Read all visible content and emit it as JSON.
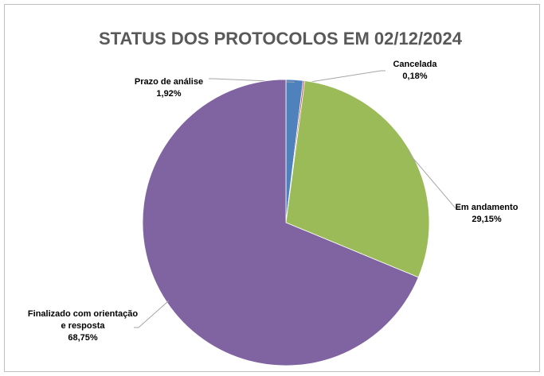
{
  "chart_data": {
    "type": "pie",
    "title": "STATUS DOS PROTOCOLOS EM 02/12/2024",
    "categories": [
      "Prazo de análise",
      "Cancelada",
      "Em andamento",
      "Finalizado com orientação e resposta"
    ],
    "values": [
      1.92,
      0.18,
      29.15,
      68.75
    ],
    "value_labels": [
      "1,92%",
      "0,18%",
      "29,15%",
      "68,75%"
    ],
    "colors": [
      "#4f81bd",
      "#c0504d",
      "#9bbb59",
      "#8064a2"
    ]
  }
}
